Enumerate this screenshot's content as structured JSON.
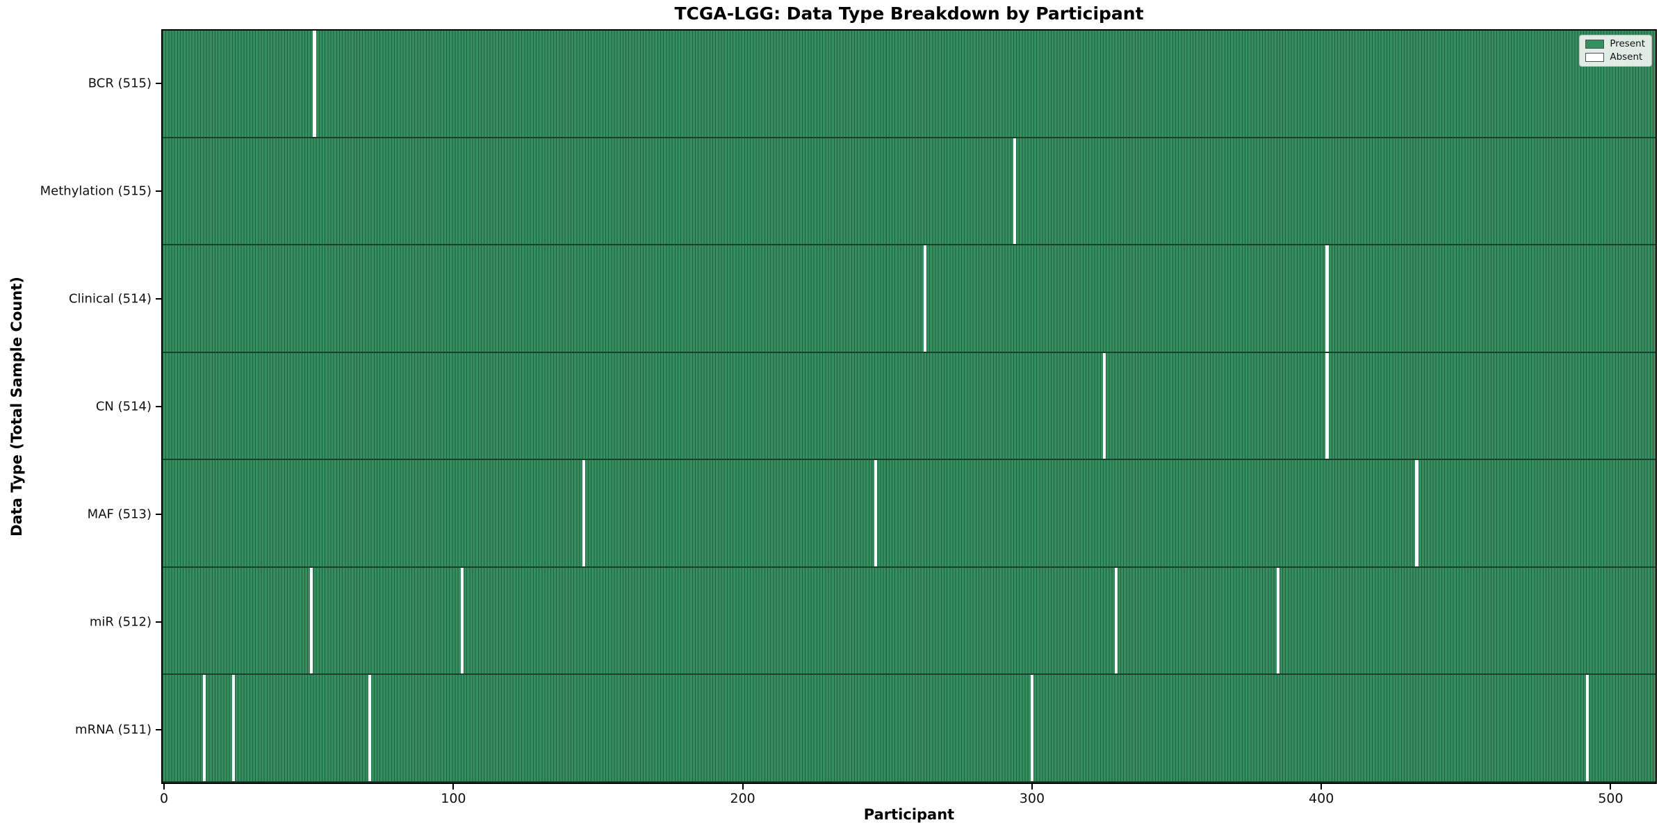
{
  "chart_data": {
    "type": "heatmap",
    "title": "TCGA-LGG: Data Type Breakdown by Participant",
    "xlabel": "Participant",
    "ylabel": "Data Type (Total Sample Count)",
    "participants_total": 516,
    "xlim": [
      0,
      516
    ],
    "x_ticks": [
      0,
      100,
      200,
      300,
      400,
      500
    ],
    "grid": false,
    "legend_position": "upper right",
    "colors": {
      "present": "#359060",
      "present_edge": "#265c40",
      "absent": "#ffffff",
      "row_divider": "#16402a",
      "plot_border": "#000000"
    },
    "rows": [
      {
        "data_type": "BCR",
        "label": "BCR (515)",
        "total": 515,
        "absent_participants": [
          52
        ]
      },
      {
        "data_type": "Methylation",
        "label": "Methylation (515)",
        "total": 515,
        "absent_participants": [
          294
        ]
      },
      {
        "data_type": "Clinical",
        "label": "Clinical (514)",
        "total": 514,
        "absent_participants": [
          263,
          402
        ]
      },
      {
        "data_type": "CN",
        "label": "CN (514)",
        "total": 514,
        "absent_participants": [
          325,
          402
        ]
      },
      {
        "data_type": "MAF",
        "label": "MAF (513)",
        "total": 513,
        "absent_participants": [
          145,
          246,
          433
        ]
      },
      {
        "data_type": "miR",
        "label": "miR (512)",
        "total": 512,
        "absent_participants": [
          51,
          103,
          329,
          385
        ]
      },
      {
        "data_type": "mRNA",
        "label": "mRNA (511)",
        "total": 511,
        "absent_participants": [
          14,
          24,
          71,
          300,
          492
        ]
      }
    ],
    "legend": [
      {
        "label": "Present",
        "color": "#359060"
      },
      {
        "label": "Absent",
        "color": "#ffffff"
      }
    ]
  }
}
